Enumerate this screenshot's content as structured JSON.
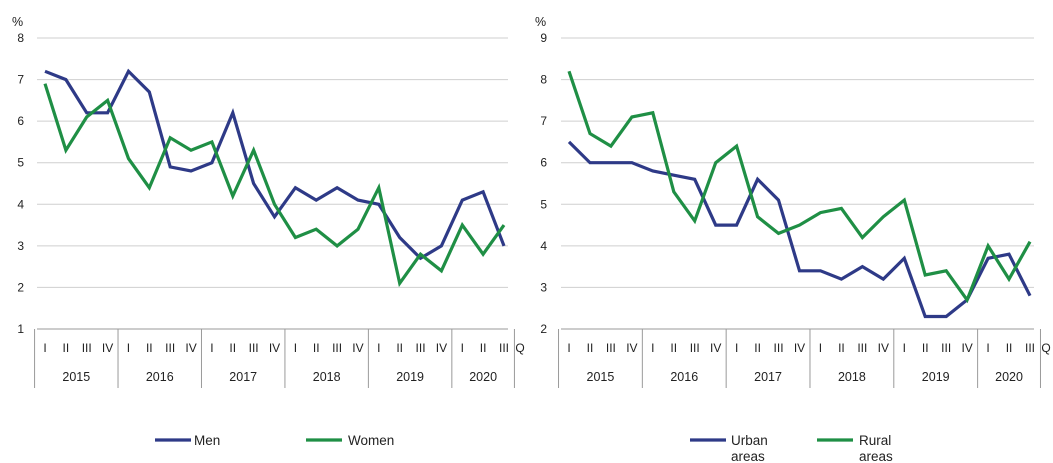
{
  "chart_data": [
    {
      "type": "line",
      "ylabel": "%",
      "ylim": [
        1,
        8
      ],
      "yticks": [
        1,
        2,
        3,
        4,
        5,
        6,
        7,
        8
      ],
      "quarter_axis_suffix": "Q",
      "years": [
        "2015",
        "2016",
        "2017",
        "2018",
        "2019",
        "2020"
      ],
      "categories": [
        "I",
        "II",
        "III",
        "IV",
        "I",
        "II",
        "III",
        "IV",
        "I",
        "II",
        "III",
        "IV",
        "I",
        "II",
        "III",
        "IV",
        "I",
        "II",
        "III",
        "IV",
        "I",
        "II",
        "III"
      ],
      "grid": "horizontal",
      "legend": "bottom",
      "series": [
        {
          "name": "Men",
          "color": "#2e3a87",
          "values": [
            7.2,
            7.0,
            6.2,
            6.2,
            7.2,
            6.7,
            4.9,
            4.8,
            5.0,
            6.2,
            4.5,
            3.7,
            4.4,
            4.1,
            4.4,
            4.1,
            4.0,
            3.2,
            2.7,
            3.0,
            4.1,
            4.3,
            3.0
          ]
        },
        {
          "name": "Women",
          "color": "#1f8f45",
          "values": [
            6.9,
            5.3,
            6.1,
            6.5,
            5.1,
            4.4,
            5.6,
            5.3,
            5.5,
            4.2,
            5.3,
            4.0,
            3.2,
            3.4,
            3.0,
            3.4,
            4.4,
            2.1,
            2.8,
            2.4,
            3.5,
            2.8,
            3.5
          ]
        }
      ]
    },
    {
      "type": "line",
      "ylabel": "%",
      "ylim": [
        2,
        9
      ],
      "yticks": [
        2,
        3,
        4,
        5,
        6,
        7,
        8,
        9
      ],
      "quarter_axis_suffix": "Q",
      "years": [
        "2015",
        "2016",
        "2017",
        "2018",
        "2019",
        "2020"
      ],
      "categories": [
        "I",
        "II",
        "III",
        "IV",
        "I",
        "II",
        "III",
        "IV",
        "I",
        "II",
        "III",
        "IV",
        "I",
        "II",
        "III",
        "IV",
        "I",
        "II",
        "III",
        "IV",
        "I",
        "II",
        "III"
      ],
      "grid": "horizontal",
      "legend": "bottom",
      "series": [
        {
          "name": "Urban areas",
          "color": "#2e3a87",
          "values": [
            6.5,
            6.0,
            6.0,
            6.0,
            5.8,
            5.7,
            5.6,
            4.5,
            4.5,
            5.6,
            5.1,
            3.4,
            3.4,
            3.2,
            3.5,
            3.2,
            3.7,
            2.3,
            2.3,
            2.7,
            3.7,
            3.8,
            2.8
          ]
        },
        {
          "name": "Rural areas",
          "color": "#1f8f45",
          "values": [
            8.2,
            6.7,
            6.4,
            7.1,
            7.2,
            5.3,
            4.6,
            6.0,
            6.4,
            4.7,
            4.3,
            4.5,
            4.8,
            4.9,
            4.2,
            4.7,
            5.1,
            3.3,
            3.4,
            2.7,
            4.0,
            3.2,
            4.1
          ]
        }
      ]
    }
  ]
}
